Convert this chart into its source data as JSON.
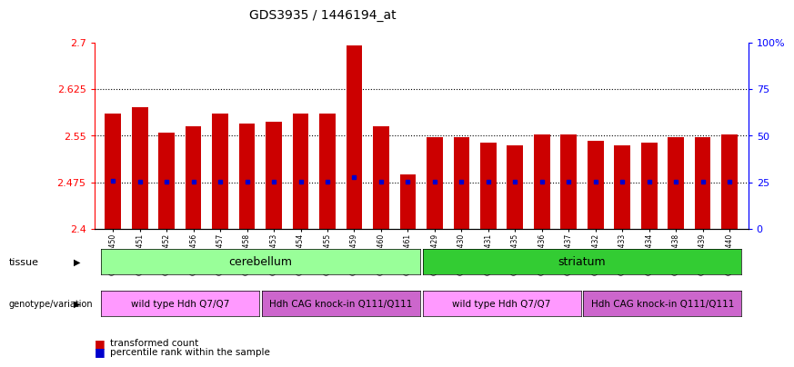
{
  "title": "GDS3935 / 1446194_at",
  "samples": [
    "GSM229450",
    "GSM229451",
    "GSM229452",
    "GSM229456",
    "GSM229457",
    "GSM229458",
    "GSM229453",
    "GSM229454",
    "GSM229455",
    "GSM229459",
    "GSM229460",
    "GSM229461",
    "GSM229429",
    "GSM229430",
    "GSM229431",
    "GSM229435",
    "GSM229436",
    "GSM229437",
    "GSM229432",
    "GSM229433",
    "GSM229434",
    "GSM229438",
    "GSM229439",
    "GSM229440"
  ],
  "bar_values": [
    2.585,
    2.595,
    2.555,
    2.565,
    2.585,
    2.57,
    2.572,
    2.585,
    2.585,
    2.695,
    2.565,
    2.488,
    2.548,
    2.548,
    2.538,
    2.535,
    2.552,
    2.552,
    2.542,
    2.535,
    2.538,
    2.548,
    2.548,
    2.552
  ],
  "blue_dot_values": [
    2.478,
    2.476,
    2.476,
    2.476,
    2.476,
    2.476,
    2.476,
    2.476,
    2.476,
    2.483,
    2.476,
    2.476,
    2.476,
    2.476,
    2.476,
    2.476,
    2.476,
    2.476,
    2.476,
    2.476,
    2.476,
    2.476,
    2.476,
    2.476
  ],
  "ylim": [
    2.4,
    2.7
  ],
  "yticks_left": [
    2.4,
    2.475,
    2.55,
    2.625,
    2.7
  ],
  "yticks_right": [
    0,
    25,
    50,
    75,
    100
  ],
  "hlines": [
    2.475,
    2.55,
    2.625
  ],
  "bar_color": "#cc0000",
  "blue_dot_color": "#0000cc",
  "tissue_cerebellum_color": "#99ff99",
  "tissue_striatum_color": "#33cc33",
  "genotype_wt_color": "#ff99ff",
  "genotype_ki_color": "#cc66cc",
  "background_color": "#ffffff"
}
